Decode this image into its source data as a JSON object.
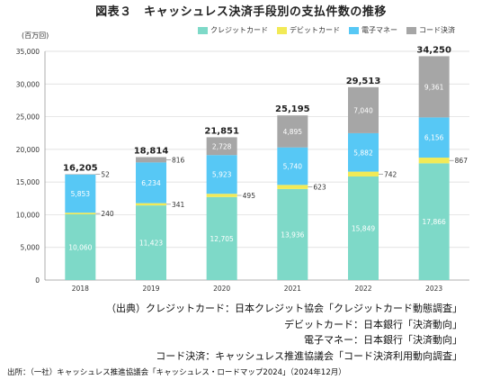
{
  "title": "図表３　キャッシュレス決済手段別の支払件数の推移",
  "colors": {
    "credit": "#7ed9c8",
    "debit": "#f2ea56",
    "emoney": "#57c8f5",
    "code": "#a6a6a6"
  },
  "chart_data": {
    "type": "bar",
    "stacked": true,
    "unit_label": "(百万回)",
    "categories": [
      "2018",
      "2019",
      "2020",
      "2021",
      "2022",
      "2023"
    ],
    "ylim": [
      0,
      35000
    ],
    "yticks": [
      "0",
      "5,000",
      "10,000",
      "15,000",
      "20,000",
      "25,000",
      "30,000",
      "35,000"
    ],
    "grid": true,
    "legend_position": "top-right",
    "series": [
      {
        "name": "クレジットカード",
        "key": "credit",
        "values": [
          10060,
          11423,
          12705,
          13936,
          15849,
          17866
        ],
        "labels": [
          "10,060",
          "11,423",
          "12,705",
          "13,936",
          "15,849",
          "17,866"
        ]
      },
      {
        "name": "デビットカード",
        "key": "debit",
        "values": [
          240,
          341,
          495,
          623,
          742,
          867
        ],
        "labels": [
          "240",
          "341",
          "495",
          "623",
          "742",
          "867"
        ]
      },
      {
        "name": "電子マネー",
        "key": "emoney",
        "values": [
          5853,
          6234,
          5923,
          5740,
          5882,
          6156
        ],
        "labels": [
          "5,853",
          "6,234",
          "5,923",
          "5,740",
          "5,882",
          "6,156"
        ]
      },
      {
        "name": "コード決済",
        "key": "code",
        "values": [
          52,
          816,
          2728,
          4895,
          7040,
          9361
        ],
        "labels": [
          "52",
          "816",
          "2,728",
          "4,895",
          "7,040",
          "9,361"
        ]
      }
    ],
    "totals": [
      "16,205",
      "18,814",
      "21,851",
      "25,195",
      "29,513",
      "34,250"
    ]
  },
  "sources": [
    "（出典）クレジットカード：日本クレジット協会「クレジットカード動態調査」",
    "デビットカード：日本銀行「決済動向」",
    "電子マネー：日本銀行「決済動向」",
    "コード決済：キャッシュレス推進協議会「コード決済利用動向調査」"
  ],
  "footnote": "出所：（一社）キャッシュレス推進協議会「キャッシュレス・ロードマップ2024」（2024年12月）"
}
